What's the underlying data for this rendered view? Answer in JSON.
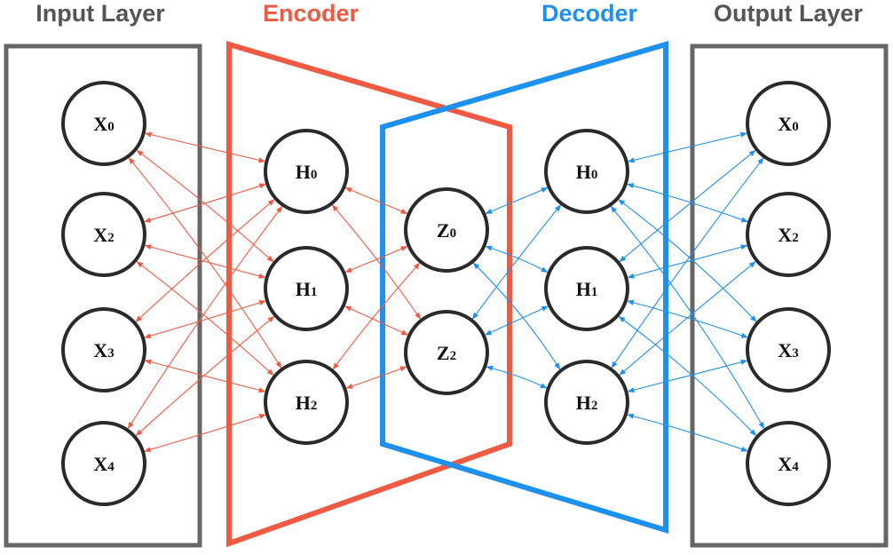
{
  "colors": {
    "encoder": "#ef5a43",
    "decoder": "#1e90ee",
    "layer_box": "#666666",
    "node_stroke": "#2a2a2a",
    "text_dark": "#555555"
  },
  "titles": {
    "input": "Input Layer",
    "encoder": "Encoder",
    "decoder": "Decoder",
    "output": "Output Layer"
  },
  "input_nodes": [
    {
      "letter": "X",
      "sub": "0"
    },
    {
      "letter": "X",
      "sub": "2"
    },
    {
      "letter": "X",
      "sub": "3"
    },
    {
      "letter": "X",
      "sub": "4"
    }
  ],
  "encoder_nodes": [
    {
      "letter": "H",
      "sub": "0"
    },
    {
      "letter": "H",
      "sub": "1"
    },
    {
      "letter": "H",
      "sub": "2"
    }
  ],
  "latent_nodes": [
    {
      "letter": "Z",
      "sub": "0"
    },
    {
      "letter": "Z",
      "sub": "2"
    }
  ],
  "decoder_nodes": [
    {
      "letter": "H",
      "sub": "0"
    },
    {
      "letter": "H",
      "sub": "1"
    },
    {
      "letter": "H",
      "sub": "2"
    }
  ],
  "output_nodes": [
    {
      "letter": "X",
      "sub": "0"
    },
    {
      "letter": "X",
      "sub": "2"
    },
    {
      "letter": "X",
      "sub": "3"
    },
    {
      "letter": "X",
      "sub": "4"
    }
  ]
}
